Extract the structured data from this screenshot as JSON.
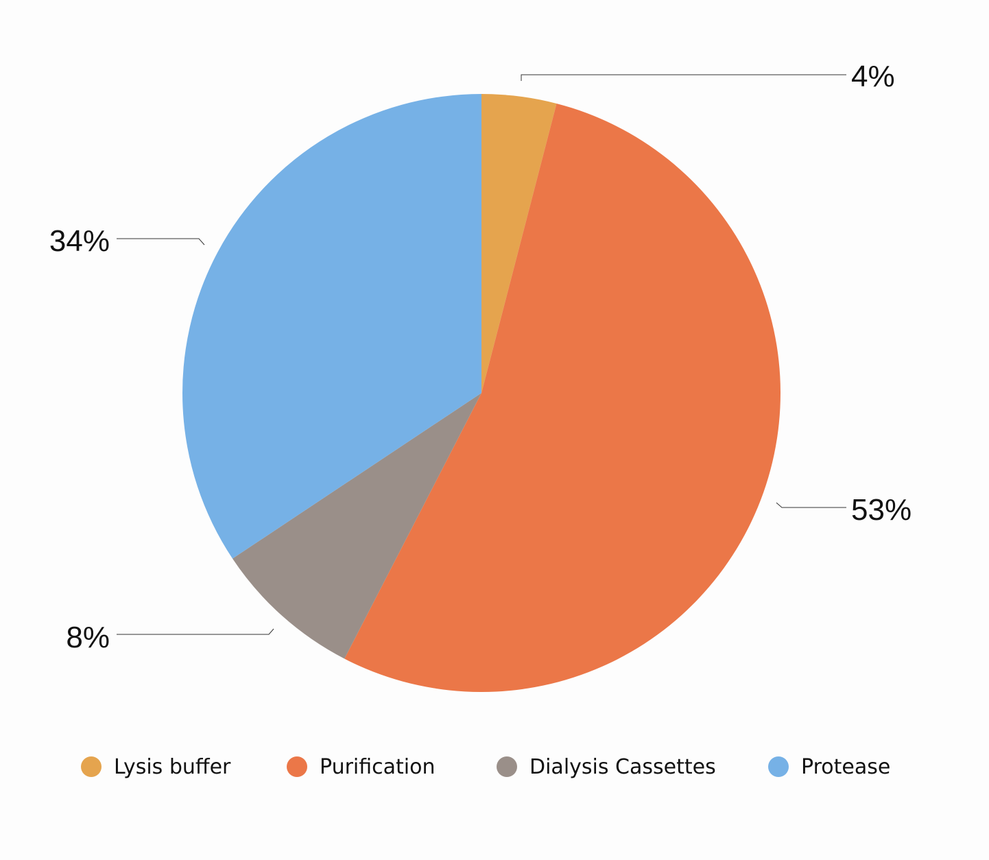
{
  "chart_data": {
    "type": "pie",
    "title": "",
    "start_angle_deg": 0,
    "direction": "clockwise",
    "slices": [
      {
        "name": "Lysis buffer",
        "value": 4,
        "label": "4%",
        "color": "#E5A44E"
      },
      {
        "name": "Purification",
        "value": 53,
        "label": "53%",
        "color": "#EB7748"
      },
      {
        "name": "Dialysis Cassettes",
        "value": 8,
        "label": "8%",
        "color": "#9A8F89"
      },
      {
        "name": "Protease",
        "value": 34,
        "label": "34%",
        "color": "#76B1E6"
      }
    ],
    "legend_position": "bottom"
  }
}
